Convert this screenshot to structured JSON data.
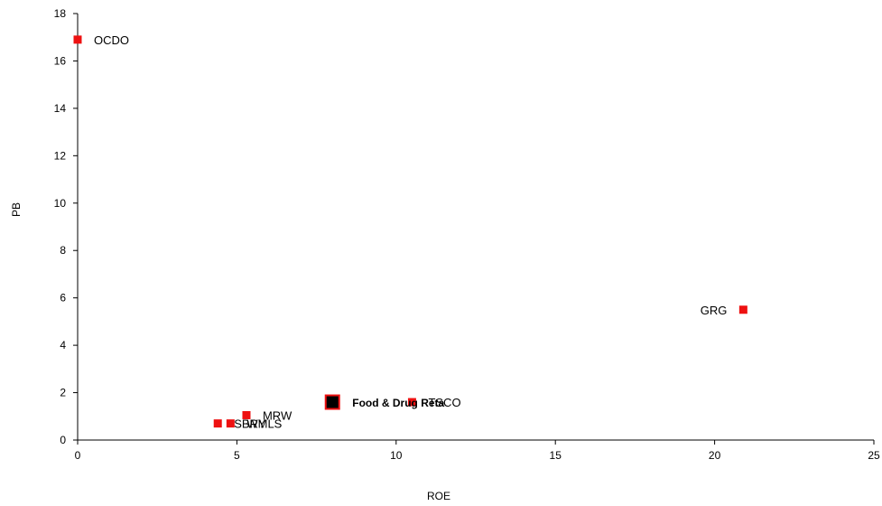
{
  "chart_data": {
    "type": "scatter",
    "xlabel": "ROE",
    "ylabel": "PB",
    "xlim": [
      0,
      25
    ],
    "ylim": [
      0,
      18
    ],
    "xticks": [
      0,
      5,
      10,
      15,
      20,
      25
    ],
    "yticks": [
      0,
      2,
      4,
      6,
      8,
      10,
      12,
      14,
      16,
      18
    ],
    "grid": false,
    "legend": "none",
    "colors": {
      "point": "#ee1111",
      "sector_point": "#000000",
      "sector_border": "#ee1111",
      "axis": "#000000"
    },
    "points": [
      {
        "label": "OCDO",
        "x": 0.0,
        "y": 16.9,
        "label_side": "right"
      },
      {
        "label": "GRG",
        "x": 20.9,
        "y": 5.5,
        "label_side": "left"
      },
      {
        "label": "TSCO",
        "x": 10.5,
        "y": 1.6,
        "label_side": "right"
      },
      {
        "label": "MRW",
        "x": 5.3,
        "y": 1.05,
        "label_side": "right"
      },
      {
        "label": "SBRY",
        "x": 4.4,
        "y": 0.7,
        "label_side": "right"
      },
      {
        "label": "WMLS",
        "x": 4.8,
        "y": 0.7,
        "label_side": "right"
      }
    ],
    "highlight": {
      "label": "Food & Drug Reta",
      "x": 8.0,
      "y": 1.6
    }
  }
}
